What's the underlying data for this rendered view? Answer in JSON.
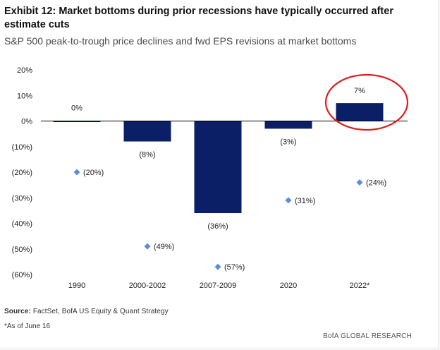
{
  "title": "Exhibit 12: Market bottoms during prior recessions have typically occurred after estimate cuts",
  "subtitle": "S&P 500 peak-to-trough price declines and fwd EPS revisions at market bottoms",
  "source": {
    "label": "Source:",
    "text": " FactSet, BofA US Equity & Quant Strategy"
  },
  "footnote": "*As of June 16",
  "credit": "BofA GLOBAL RESEARCH",
  "colors": {
    "bar": "#0a1f66",
    "marker": "#5b8ed6",
    "highlight_circle": "#e01c1c",
    "axis": "#000000"
  },
  "chart_data": {
    "type": "bar",
    "categories": [
      "1990",
      "2000-2002",
      "2007-2009",
      "2020",
      "2022*"
    ],
    "series": [
      {
        "kind": "bar",
        "values": [
          0,
          -8,
          -36,
          -3,
          7
        ],
        "labels": [
          "0%",
          "(8%)",
          "(36%)",
          "(3%)",
          "7%"
        ]
      },
      {
        "kind": "scatter",
        "marker": "diamond",
        "values": [
          -20,
          -49,
          -57,
          -31,
          -24
        ],
        "labels": [
          "(20%)",
          "(49%)",
          "(57%)",
          "(31%)",
          "(24%)"
        ]
      }
    ],
    "yticks": [
      20,
      10,
      0,
      -10,
      -20,
      -30,
      -40,
      -50,
      -60
    ],
    "ytick_labels": [
      "20%",
      "10%",
      "0%",
      "(10%)",
      "(20%)",
      "(30%)",
      "(40%)",
      "(50%)",
      "(60%)"
    ],
    "ylim": [
      -60,
      20
    ],
    "highlight": "2022*",
    "grid": false,
    "legend": "none"
  }
}
